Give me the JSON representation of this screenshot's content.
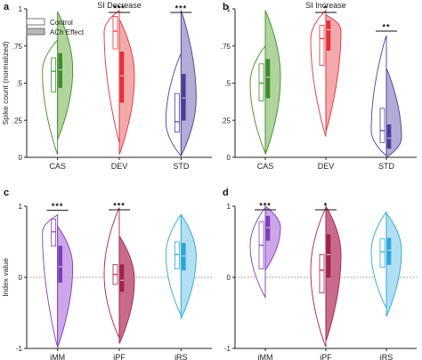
{
  "legend": {
    "control_label": "Control",
    "ach_label": "ACh Effect"
  },
  "chart_data": [
    {
      "type": "violin",
      "panel": "a",
      "title": "SI Decrease",
      "ylabel": "Spike count (normalized)",
      "ylim": [
        0,
        1
      ],
      "yticks": [
        0,
        0.25,
        0.5,
        0.75,
        1
      ],
      "categories": [
        "CAS",
        "DEV",
        "STD"
      ],
      "colors": [
        "#3f8a2e",
        "#e0333a",
        "#4a3f96"
      ],
      "fills": [
        "#a8cf91",
        "#f2a0a3",
        "#a9a3d4"
      ],
      "groups": [
        {
          "name": "CAS",
          "significance": "",
          "control": {
            "min": 0.02,
            "max": 0.79,
            "q1": 0.44,
            "q3": 0.67,
            "median": 0.58
          },
          "ach": {
            "min": 0.12,
            "max": 0.98,
            "q1": 0.47,
            "q3": 0.7,
            "median": 0.59
          }
        },
        {
          "name": "DEV",
          "significance": "***",
          "control": {
            "min": 0.1,
            "max": 0.99,
            "q1": 0.73,
            "q3": 0.95,
            "median": 0.85
          },
          "ach": {
            "min": 0.02,
            "max": 0.93,
            "q1": 0.37,
            "q3": 0.71,
            "median": 0.55
          }
        },
        {
          "name": "STD",
          "significance": "***",
          "control": {
            "min": 0.01,
            "max": 0.7,
            "q1": 0.17,
            "q3": 0.43,
            "median": 0.24
          },
          "ach": {
            "min": 0.01,
            "max": 0.99,
            "q1": 0.25,
            "q3": 0.56,
            "median": 0.4
          }
        }
      ]
    },
    {
      "type": "violin",
      "panel": "b",
      "title": "SI Increase",
      "ylabel": "",
      "ylim": [
        0,
        1
      ],
      "yticks": [
        0,
        0.25,
        0.5,
        0.75,
        1
      ],
      "categories": [
        "CAS",
        "DEV",
        "STD"
      ],
      "colors": [
        "#3f8a2e",
        "#e0333a",
        "#4a3f96"
      ],
      "fills": [
        "#a8cf91",
        "#f2a0a3",
        "#a9a3d4"
      ],
      "groups": [
        {
          "name": "CAS",
          "significance": "",
          "control": {
            "min": 0.03,
            "max": 0.75,
            "q1": 0.38,
            "q3": 0.63,
            "median": 0.5
          },
          "ach": {
            "min": 0.02,
            "max": 0.99,
            "q1": 0.4,
            "q3": 0.66,
            "median": 0.54
          }
        },
        {
          "name": "DEV",
          "significance": "*",
          "control": {
            "min": 0.14,
            "max": 0.99,
            "q1": 0.62,
            "q3": 0.89,
            "median": 0.8
          },
          "ach": {
            "min": 0.17,
            "max": 0.96,
            "q1": 0.72,
            "q3": 0.92,
            "median": 0.86
          }
        },
        {
          "name": "STD",
          "significance": "**",
          "control": {
            "min": 0.01,
            "max": 0.82,
            "q1": 0.1,
            "q3": 0.33,
            "median": 0.18
          },
          "ach": {
            "min": 0.0,
            "max": 0.6,
            "q1": 0.06,
            "q3": 0.22,
            "median": 0.13
          }
        }
      ]
    },
    {
      "type": "violin",
      "panel": "c",
      "title": "",
      "ylabel": "Index value",
      "ylim": [
        -1,
        1
      ],
      "yticks": [
        -1,
        0,
        1
      ],
      "reference_line": 0,
      "categories": [
        "iMM",
        "iPF",
        "iRS"
      ],
      "colors": [
        "#7b3fb6",
        "#a0234c",
        "#2aa7d8"
      ],
      "fills": [
        "#c79be9",
        "#c25a7f",
        "#a8dbf2"
      ],
      "groups": [
        {
          "name": "iMM",
          "significance": "***",
          "control": {
            "min": -0.98,
            "max": 0.88,
            "q1": 0.44,
            "q3": 0.82,
            "median": 0.64
          },
          "ach": {
            "min": -0.98,
            "max": 0.72,
            "q1": -0.07,
            "q3": 0.44,
            "median": 0.15
          }
        },
        {
          "name": "iPF",
          "significance": "***",
          "control": {
            "min": -0.85,
            "max": 0.98,
            "q1": -0.1,
            "q3": 0.18,
            "median": 0.04
          },
          "ach": {
            "min": -0.93,
            "max": 0.58,
            "q1": -0.2,
            "q3": 0.18,
            "median": -0.04
          }
        },
        {
          "name": "iRS",
          "significance": "",
          "control": {
            "min": -0.53,
            "max": 0.88,
            "q1": 0.12,
            "q3": 0.5,
            "median": 0.32
          },
          "ach": {
            "min": -0.58,
            "max": 0.88,
            "q1": 0.1,
            "q3": 0.48,
            "median": 0.3
          }
        }
      ]
    },
    {
      "type": "violin",
      "panel": "d",
      "title": "",
      "ylabel": "",
      "ylim": [
        -1,
        1
      ],
      "yticks": [
        -1,
        0,
        1
      ],
      "reference_line": 0,
      "categories": [
        "iMM",
        "iPF",
        "iRS"
      ],
      "colors": [
        "#7b3fb6",
        "#a0234c",
        "#2aa7d8"
      ],
      "fills": [
        "#c79be9",
        "#c25a7f",
        "#a8dbf2"
      ],
      "groups": [
        {
          "name": "iMM",
          "significance": "***",
          "control": {
            "min": -0.28,
            "max": 0.98,
            "q1": 0.12,
            "q3": 0.78,
            "median": 0.45
          },
          "ach": {
            "min": 0.1,
            "max": 1.0,
            "q1": 0.52,
            "q3": 0.86,
            "median": 0.7
          }
        },
        {
          "name": "iPF",
          "significance": "*",
          "control": {
            "min": -0.98,
            "max": 0.98,
            "q1": -0.22,
            "q3": 0.32,
            "median": 0.1
          },
          "ach": {
            "min": -0.9,
            "max": 1.0,
            "q1": 0.0,
            "q3": 0.6,
            "median": 0.32
          }
        },
        {
          "name": "iRS",
          "significance": "",
          "control": {
            "min": -0.43,
            "max": 0.92,
            "q1": 0.14,
            "q3": 0.54,
            "median": 0.36
          },
          "ach": {
            "min": -0.55,
            "max": 0.9,
            "q1": 0.18,
            "q3": 0.55,
            "median": 0.38
          }
        }
      ]
    }
  ]
}
